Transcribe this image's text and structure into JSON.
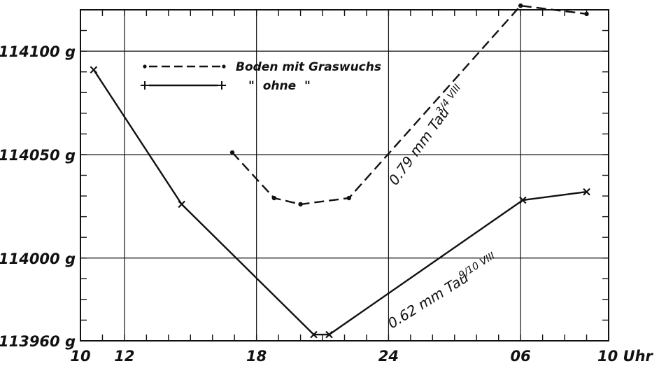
{
  "chart_data": {
    "type": "line",
    "y_ticks": [
      "114100 g",
      "114050 g",
      "114000 g",
      "113960 g"
    ],
    "y_tick_values": [
      114100,
      114050,
      114000,
      113960
    ],
    "x_ticks": [
      "10",
      "12",
      "18",
      "24",
      "06",
      "10 Uhr"
    ],
    "x_tick_values": [
      10,
      12,
      18,
      24,
      30,
      34
    ],
    "xlim": [
      10,
      34
    ],
    "ylim": [
      113960,
      114120
    ],
    "grid": true,
    "legend_position": "top-left",
    "series": [
      {
        "name": "Boden mit Graswuchs",
        "style": "dashed",
        "marker": "dot",
        "x": [
          16.9,
          18.8,
          20.0,
          22.2,
          30.0,
          33.0
        ],
        "y": [
          114051,
          114029,
          114026,
          114029,
          114122,
          114118
        ]
      },
      {
        "name": "\"  ohne  \"",
        "style": "solid",
        "marker": "x",
        "x": [
          10.6,
          14.6,
          20.6,
          21.3,
          30.1,
          33.0
        ],
        "y": [
          114091,
          114026,
          113963,
          113963,
          114028,
          114032
        ]
      }
    ],
    "annotations": [
      {
        "text": "0.79 mm Tau",
        "fraction": "3/4 VIII"
      },
      {
        "text": "0.62 mm Tau",
        "fraction": "9/10 VIII"
      }
    ]
  }
}
